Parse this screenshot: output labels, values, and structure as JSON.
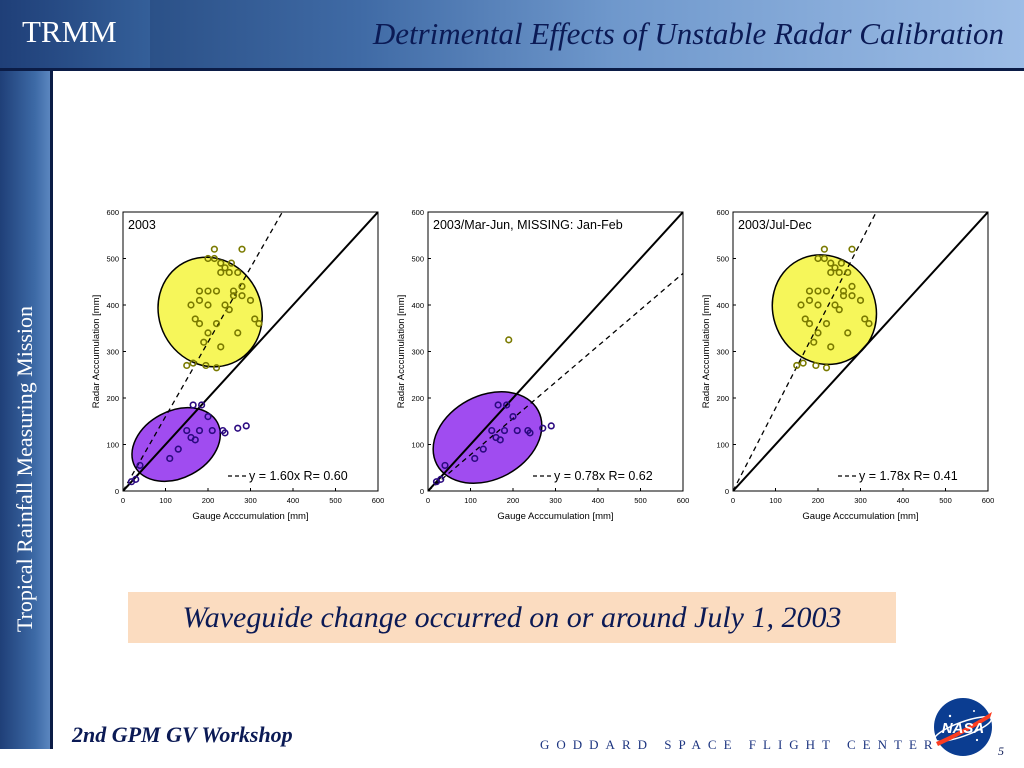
{
  "header": {
    "brand": "TRMM",
    "title": "Detrimental Effects of Unstable Radar Calibration"
  },
  "sidebar": {
    "text": "Tropical Rainfall Measuring Mission"
  },
  "caption": "Waveguide change occurred on or around July 1, 2003",
  "footer": {
    "workshop": "2nd GPM GV Workshop",
    "center": "GODDARD SPACE FLIGHT CENTER",
    "page": "5",
    "logo_text": "NASA"
  },
  "colors": {
    "header_dark": "#1d3f73",
    "ellipse_yellow": "#f6f65a",
    "ellipse_purple": "#a04cf0",
    "caption_bg": "#fbdcc0",
    "title_text": "#0b1a55"
  },
  "chart_data": [
    {
      "type": "scatter",
      "title": "2003",
      "xlabel": "Gauge Acccumulation [mm]",
      "ylabel": "Radar Acccumulation [mm]",
      "xlim": [
        0,
        600
      ],
      "ylim": [
        0,
        600
      ],
      "xticks": [
        "0",
        "100",
        "200",
        "300",
        "400",
        "500",
        "600"
      ],
      "yticks": [
        "0",
        "100",
        "200",
        "300",
        "400",
        "500",
        "600"
      ],
      "fit_label": "y = 1.60x    R= 0.60",
      "fit_slope": 1.6,
      "ellipses": [
        {
          "color": "yellow",
          "cx": 205,
          "cy": 385,
          "rx": 120,
          "ry": 120
        },
        {
          "color": "purple",
          "cx": 125,
          "cy": 100,
          "rx": 110,
          "ry": 72
        }
      ],
      "points": [
        [
          215,
          520
        ],
        [
          200,
          500
        ],
        [
          215,
          500
        ],
        [
          230,
          490
        ],
        [
          240,
          480
        ],
        [
          255,
          490
        ],
        [
          280,
          520
        ],
        [
          230,
          470
        ],
        [
          250,
          470
        ],
        [
          270,
          470
        ],
        [
          180,
          430
        ],
        [
          200,
          430
        ],
        [
          220,
          430
        ],
        [
          260,
          430
        ],
        [
          280,
          440
        ],
        [
          300,
          410
        ],
        [
          160,
          400
        ],
        [
          180,
          410
        ],
        [
          200,
          400
        ],
        [
          240,
          400
        ],
        [
          260,
          420
        ],
        [
          280,
          420
        ],
        [
          170,
          370
        ],
        [
          180,
          360
        ],
        [
          220,
          360
        ],
        [
          250,
          390
        ],
        [
          310,
          370
        ],
        [
          320,
          360
        ],
        [
          200,
          340
        ],
        [
          270,
          340
        ],
        [
          190,
          320
        ],
        [
          230,
          310
        ],
        [
          150,
          270
        ],
        [
          165,
          275
        ],
        [
          195,
          270
        ],
        [
          220,
          265
        ],
        [
          165,
          185
        ],
        [
          185,
          185
        ],
        [
          200,
          160
        ],
        [
          150,
          130
        ],
        [
          160,
          115
        ],
        [
          170,
          110
        ],
        [
          180,
          130
        ],
        [
          210,
          130
        ],
        [
          235,
          130
        ],
        [
          240,
          125
        ],
        [
          270,
          135
        ],
        [
          290,
          140
        ],
        [
          130,
          90
        ],
        [
          110,
          70
        ],
        [
          40,
          55
        ],
        [
          20,
          20
        ],
        [
          30,
          25
        ]
      ]
    },
    {
      "type": "scatter",
      "title": "2003/Mar-Jun, MISSING: Jan-Feb",
      "xlabel": "Gauge Acccumulation [mm]",
      "ylabel": "Radar Acccumulation [mm]",
      "xlim": [
        0,
        600
      ],
      "ylim": [
        0,
        600
      ],
      "xticks": [
        "0",
        "100",
        "200",
        "300",
        "400",
        "500",
        "600"
      ],
      "yticks": [
        "0",
        "100",
        "200",
        "300",
        "400",
        "500",
        "600"
      ],
      "fit_label": "y = 0.78x    R= 0.62",
      "fit_slope": 0.78,
      "ellipses": [
        {
          "color": "purple",
          "cx": 140,
          "cy": 115,
          "rx": 135,
          "ry": 90
        }
      ],
      "points": [
        [
          190,
          325
        ],
        [
          165,
          185
        ],
        [
          185,
          185
        ],
        [
          200,
          160
        ],
        [
          150,
          130
        ],
        [
          160,
          115
        ],
        [
          170,
          110
        ],
        [
          180,
          130
        ],
        [
          210,
          130
        ],
        [
          235,
          130
        ],
        [
          240,
          125
        ],
        [
          270,
          135
        ],
        [
          290,
          140
        ],
        [
          130,
          90
        ],
        [
          110,
          70
        ],
        [
          40,
          55
        ],
        [
          20,
          20
        ],
        [
          30,
          25
        ]
      ]
    },
    {
      "type": "scatter",
      "title": "2003/Jul-Dec",
      "xlabel": "Gauge Acccumulation [mm]",
      "ylabel": "Radar Acccumulation [mm]",
      "xlim": [
        0,
        600
      ],
      "ylim": [
        0,
        600
      ],
      "xticks": [
        "0",
        "100",
        "200",
        "300",
        "400",
        "500",
        "600"
      ],
      "yticks": [
        "0",
        "100",
        "200",
        "300",
        "400",
        "500",
        "600"
      ],
      "fit_label": "y = 1.78x    R= 0.41",
      "fit_slope": 1.78,
      "ellipses": [
        {
          "color": "yellow",
          "cx": 215,
          "cy": 390,
          "rx": 120,
          "ry": 120
        }
      ],
      "points": [
        [
          215,
          520
        ],
        [
          200,
          500
        ],
        [
          215,
          500
        ],
        [
          230,
          490
        ],
        [
          240,
          480
        ],
        [
          255,
          490
        ],
        [
          280,
          520
        ],
        [
          230,
          470
        ],
        [
          250,
          470
        ],
        [
          270,
          470
        ],
        [
          180,
          430
        ],
        [
          200,
          430
        ],
        [
          220,
          430
        ],
        [
          260,
          430
        ],
        [
          280,
          440
        ],
        [
          300,
          410
        ],
        [
          160,
          400
        ],
        [
          180,
          410
        ],
        [
          200,
          400
        ],
        [
          240,
          400
        ],
        [
          260,
          420
        ],
        [
          280,
          420
        ],
        [
          170,
          370
        ],
        [
          180,
          360
        ],
        [
          220,
          360
        ],
        [
          250,
          390
        ],
        [
          310,
          370
        ],
        [
          320,
          360
        ],
        [
          200,
          340
        ],
        [
          270,
          340
        ],
        [
          190,
          320
        ],
        [
          230,
          310
        ],
        [
          150,
          270
        ],
        [
          165,
          275
        ],
        [
          195,
          270
        ],
        [
          220,
          265
        ]
      ]
    }
  ]
}
